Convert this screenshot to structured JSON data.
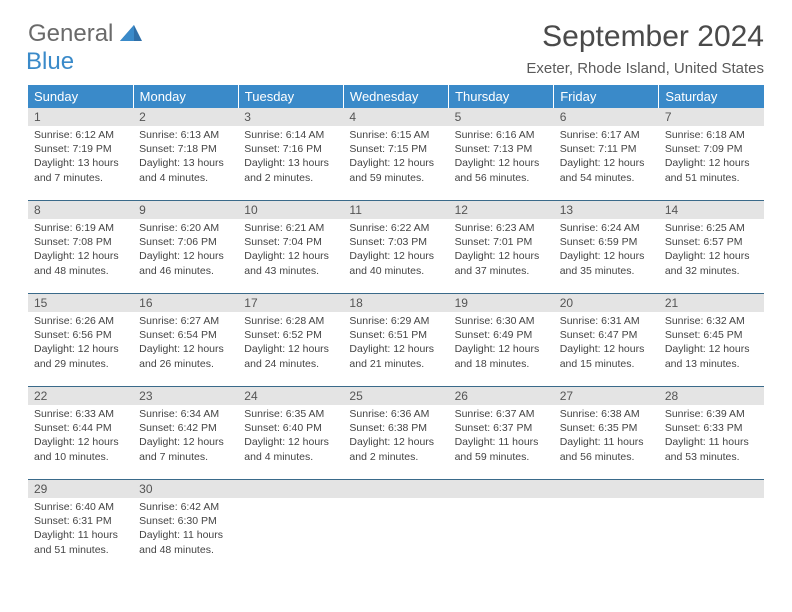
{
  "logo": {
    "general": "General",
    "blue": "Blue"
  },
  "title": "September 2024",
  "location": "Exeter, Rhode Island, United States",
  "headers": [
    "Sunday",
    "Monday",
    "Tuesday",
    "Wednesday",
    "Thursday",
    "Friday",
    "Saturday"
  ],
  "colors": {
    "header_bg": "#3a8ac9",
    "header_text": "#ffffff",
    "daynum_bg": "#e4e4e4",
    "rule": "#3a6a8a"
  },
  "weeks": [
    [
      {
        "n": "1",
        "sr": "Sunrise: 6:12 AM",
        "ss": "Sunset: 7:19 PM",
        "dl": "Daylight: 13 hours and 7 minutes."
      },
      {
        "n": "2",
        "sr": "Sunrise: 6:13 AM",
        "ss": "Sunset: 7:18 PM",
        "dl": "Daylight: 13 hours and 4 minutes."
      },
      {
        "n": "3",
        "sr": "Sunrise: 6:14 AM",
        "ss": "Sunset: 7:16 PM",
        "dl": "Daylight: 13 hours and 2 minutes."
      },
      {
        "n": "4",
        "sr": "Sunrise: 6:15 AM",
        "ss": "Sunset: 7:15 PM",
        "dl": "Daylight: 12 hours and 59 minutes."
      },
      {
        "n": "5",
        "sr": "Sunrise: 6:16 AM",
        "ss": "Sunset: 7:13 PM",
        "dl": "Daylight: 12 hours and 56 minutes."
      },
      {
        "n": "6",
        "sr": "Sunrise: 6:17 AM",
        "ss": "Sunset: 7:11 PM",
        "dl": "Daylight: 12 hours and 54 minutes."
      },
      {
        "n": "7",
        "sr": "Sunrise: 6:18 AM",
        "ss": "Sunset: 7:09 PM",
        "dl": "Daylight: 12 hours and 51 minutes."
      }
    ],
    [
      {
        "n": "8",
        "sr": "Sunrise: 6:19 AM",
        "ss": "Sunset: 7:08 PM",
        "dl": "Daylight: 12 hours and 48 minutes."
      },
      {
        "n": "9",
        "sr": "Sunrise: 6:20 AM",
        "ss": "Sunset: 7:06 PM",
        "dl": "Daylight: 12 hours and 46 minutes."
      },
      {
        "n": "10",
        "sr": "Sunrise: 6:21 AM",
        "ss": "Sunset: 7:04 PM",
        "dl": "Daylight: 12 hours and 43 minutes."
      },
      {
        "n": "11",
        "sr": "Sunrise: 6:22 AM",
        "ss": "Sunset: 7:03 PM",
        "dl": "Daylight: 12 hours and 40 minutes."
      },
      {
        "n": "12",
        "sr": "Sunrise: 6:23 AM",
        "ss": "Sunset: 7:01 PM",
        "dl": "Daylight: 12 hours and 37 minutes."
      },
      {
        "n": "13",
        "sr": "Sunrise: 6:24 AM",
        "ss": "Sunset: 6:59 PM",
        "dl": "Daylight: 12 hours and 35 minutes."
      },
      {
        "n": "14",
        "sr": "Sunrise: 6:25 AM",
        "ss": "Sunset: 6:57 PM",
        "dl": "Daylight: 12 hours and 32 minutes."
      }
    ],
    [
      {
        "n": "15",
        "sr": "Sunrise: 6:26 AM",
        "ss": "Sunset: 6:56 PM",
        "dl": "Daylight: 12 hours and 29 minutes."
      },
      {
        "n": "16",
        "sr": "Sunrise: 6:27 AM",
        "ss": "Sunset: 6:54 PM",
        "dl": "Daylight: 12 hours and 26 minutes."
      },
      {
        "n": "17",
        "sr": "Sunrise: 6:28 AM",
        "ss": "Sunset: 6:52 PM",
        "dl": "Daylight: 12 hours and 24 minutes."
      },
      {
        "n": "18",
        "sr": "Sunrise: 6:29 AM",
        "ss": "Sunset: 6:51 PM",
        "dl": "Daylight: 12 hours and 21 minutes."
      },
      {
        "n": "19",
        "sr": "Sunrise: 6:30 AM",
        "ss": "Sunset: 6:49 PM",
        "dl": "Daylight: 12 hours and 18 minutes."
      },
      {
        "n": "20",
        "sr": "Sunrise: 6:31 AM",
        "ss": "Sunset: 6:47 PM",
        "dl": "Daylight: 12 hours and 15 minutes."
      },
      {
        "n": "21",
        "sr": "Sunrise: 6:32 AM",
        "ss": "Sunset: 6:45 PM",
        "dl": "Daylight: 12 hours and 13 minutes."
      }
    ],
    [
      {
        "n": "22",
        "sr": "Sunrise: 6:33 AM",
        "ss": "Sunset: 6:44 PM",
        "dl": "Daylight: 12 hours and 10 minutes."
      },
      {
        "n": "23",
        "sr": "Sunrise: 6:34 AM",
        "ss": "Sunset: 6:42 PM",
        "dl": "Daylight: 12 hours and 7 minutes."
      },
      {
        "n": "24",
        "sr": "Sunrise: 6:35 AM",
        "ss": "Sunset: 6:40 PM",
        "dl": "Daylight: 12 hours and 4 minutes."
      },
      {
        "n": "25",
        "sr": "Sunrise: 6:36 AM",
        "ss": "Sunset: 6:38 PM",
        "dl": "Daylight: 12 hours and 2 minutes."
      },
      {
        "n": "26",
        "sr": "Sunrise: 6:37 AM",
        "ss": "Sunset: 6:37 PM",
        "dl": "Daylight: 11 hours and 59 minutes."
      },
      {
        "n": "27",
        "sr": "Sunrise: 6:38 AM",
        "ss": "Sunset: 6:35 PM",
        "dl": "Daylight: 11 hours and 56 minutes."
      },
      {
        "n": "28",
        "sr": "Sunrise: 6:39 AM",
        "ss": "Sunset: 6:33 PM",
        "dl": "Daylight: 11 hours and 53 minutes."
      }
    ],
    [
      {
        "n": "29",
        "sr": "Sunrise: 6:40 AM",
        "ss": "Sunset: 6:31 PM",
        "dl": "Daylight: 11 hours and 51 minutes."
      },
      {
        "n": "30",
        "sr": "Sunrise: 6:42 AM",
        "ss": "Sunset: 6:30 PM",
        "dl": "Daylight: 11 hours and 48 minutes."
      },
      null,
      null,
      null,
      null,
      null
    ]
  ]
}
